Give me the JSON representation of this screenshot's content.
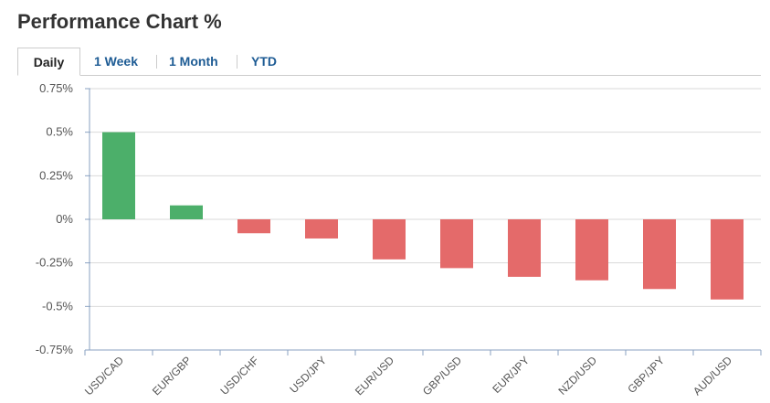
{
  "header": {
    "title": "Performance Chart %"
  },
  "tabs": [
    {
      "label": "Daily",
      "active": true
    },
    {
      "label": "1 Week",
      "active": false
    },
    {
      "label": "1 Month",
      "active": false
    },
    {
      "label": "YTD",
      "active": false
    }
  ],
  "colors": {
    "positive": "#4caf6a",
    "negative": "#e46a6a",
    "grid": "#d9d9d9",
    "axis": "#8aa2c2",
    "tab_link": "#1d5b94"
  },
  "chart_data": {
    "type": "bar",
    "title": "Performance Chart %",
    "categories": [
      "USD/CAD",
      "EUR/GBP",
      "USD/CHF",
      "USD/JPY",
      "EUR/USD",
      "GBP/USD",
      "EUR/JPY",
      "NZD/USD",
      "GBP/JPY",
      "AUD/USD"
    ],
    "values": [
      0.5,
      0.08,
      -0.08,
      -0.11,
      -0.23,
      -0.28,
      -0.33,
      -0.35,
      -0.4,
      -0.46
    ],
    "yticks": [
      0.75,
      0.5,
      0.25,
      0,
      -0.25,
      -0.5,
      -0.75
    ],
    "ytick_labels": [
      "0.75%",
      "0.5%",
      "0.25%",
      "0%",
      "-0.25%",
      "-0.5%",
      "-0.75%"
    ],
    "ylim": [
      -0.75,
      0.75
    ],
    "grid": true,
    "xlabel": "",
    "ylabel": ""
  }
}
